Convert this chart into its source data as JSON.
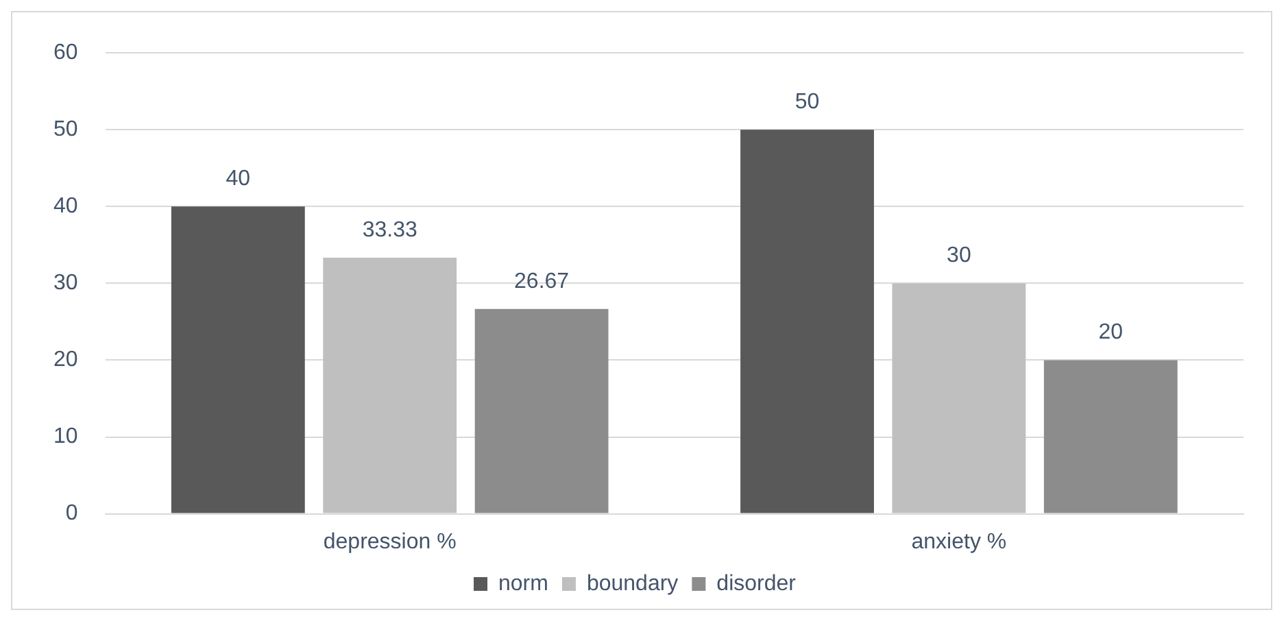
{
  "chart_data": {
    "type": "bar",
    "categories": [
      "depression %",
      "anxiety %"
    ],
    "series": [
      {
        "name": "norm",
        "color": "#595959",
        "values": [
          40,
          50
        ]
      },
      {
        "name": "boundary",
        "color": "#bfbfbf",
        "values": [
          33.33,
          30
        ]
      },
      {
        "name": "disorder",
        "color": "#8c8c8c",
        "values": [
          26.67,
          20
        ]
      }
    ],
    "ylim": [
      0,
      60
    ],
    "yticks": [
      0,
      10,
      20,
      30,
      40,
      50,
      60
    ],
    "grid": "y",
    "legend": "bottom",
    "data_labels": true
  }
}
